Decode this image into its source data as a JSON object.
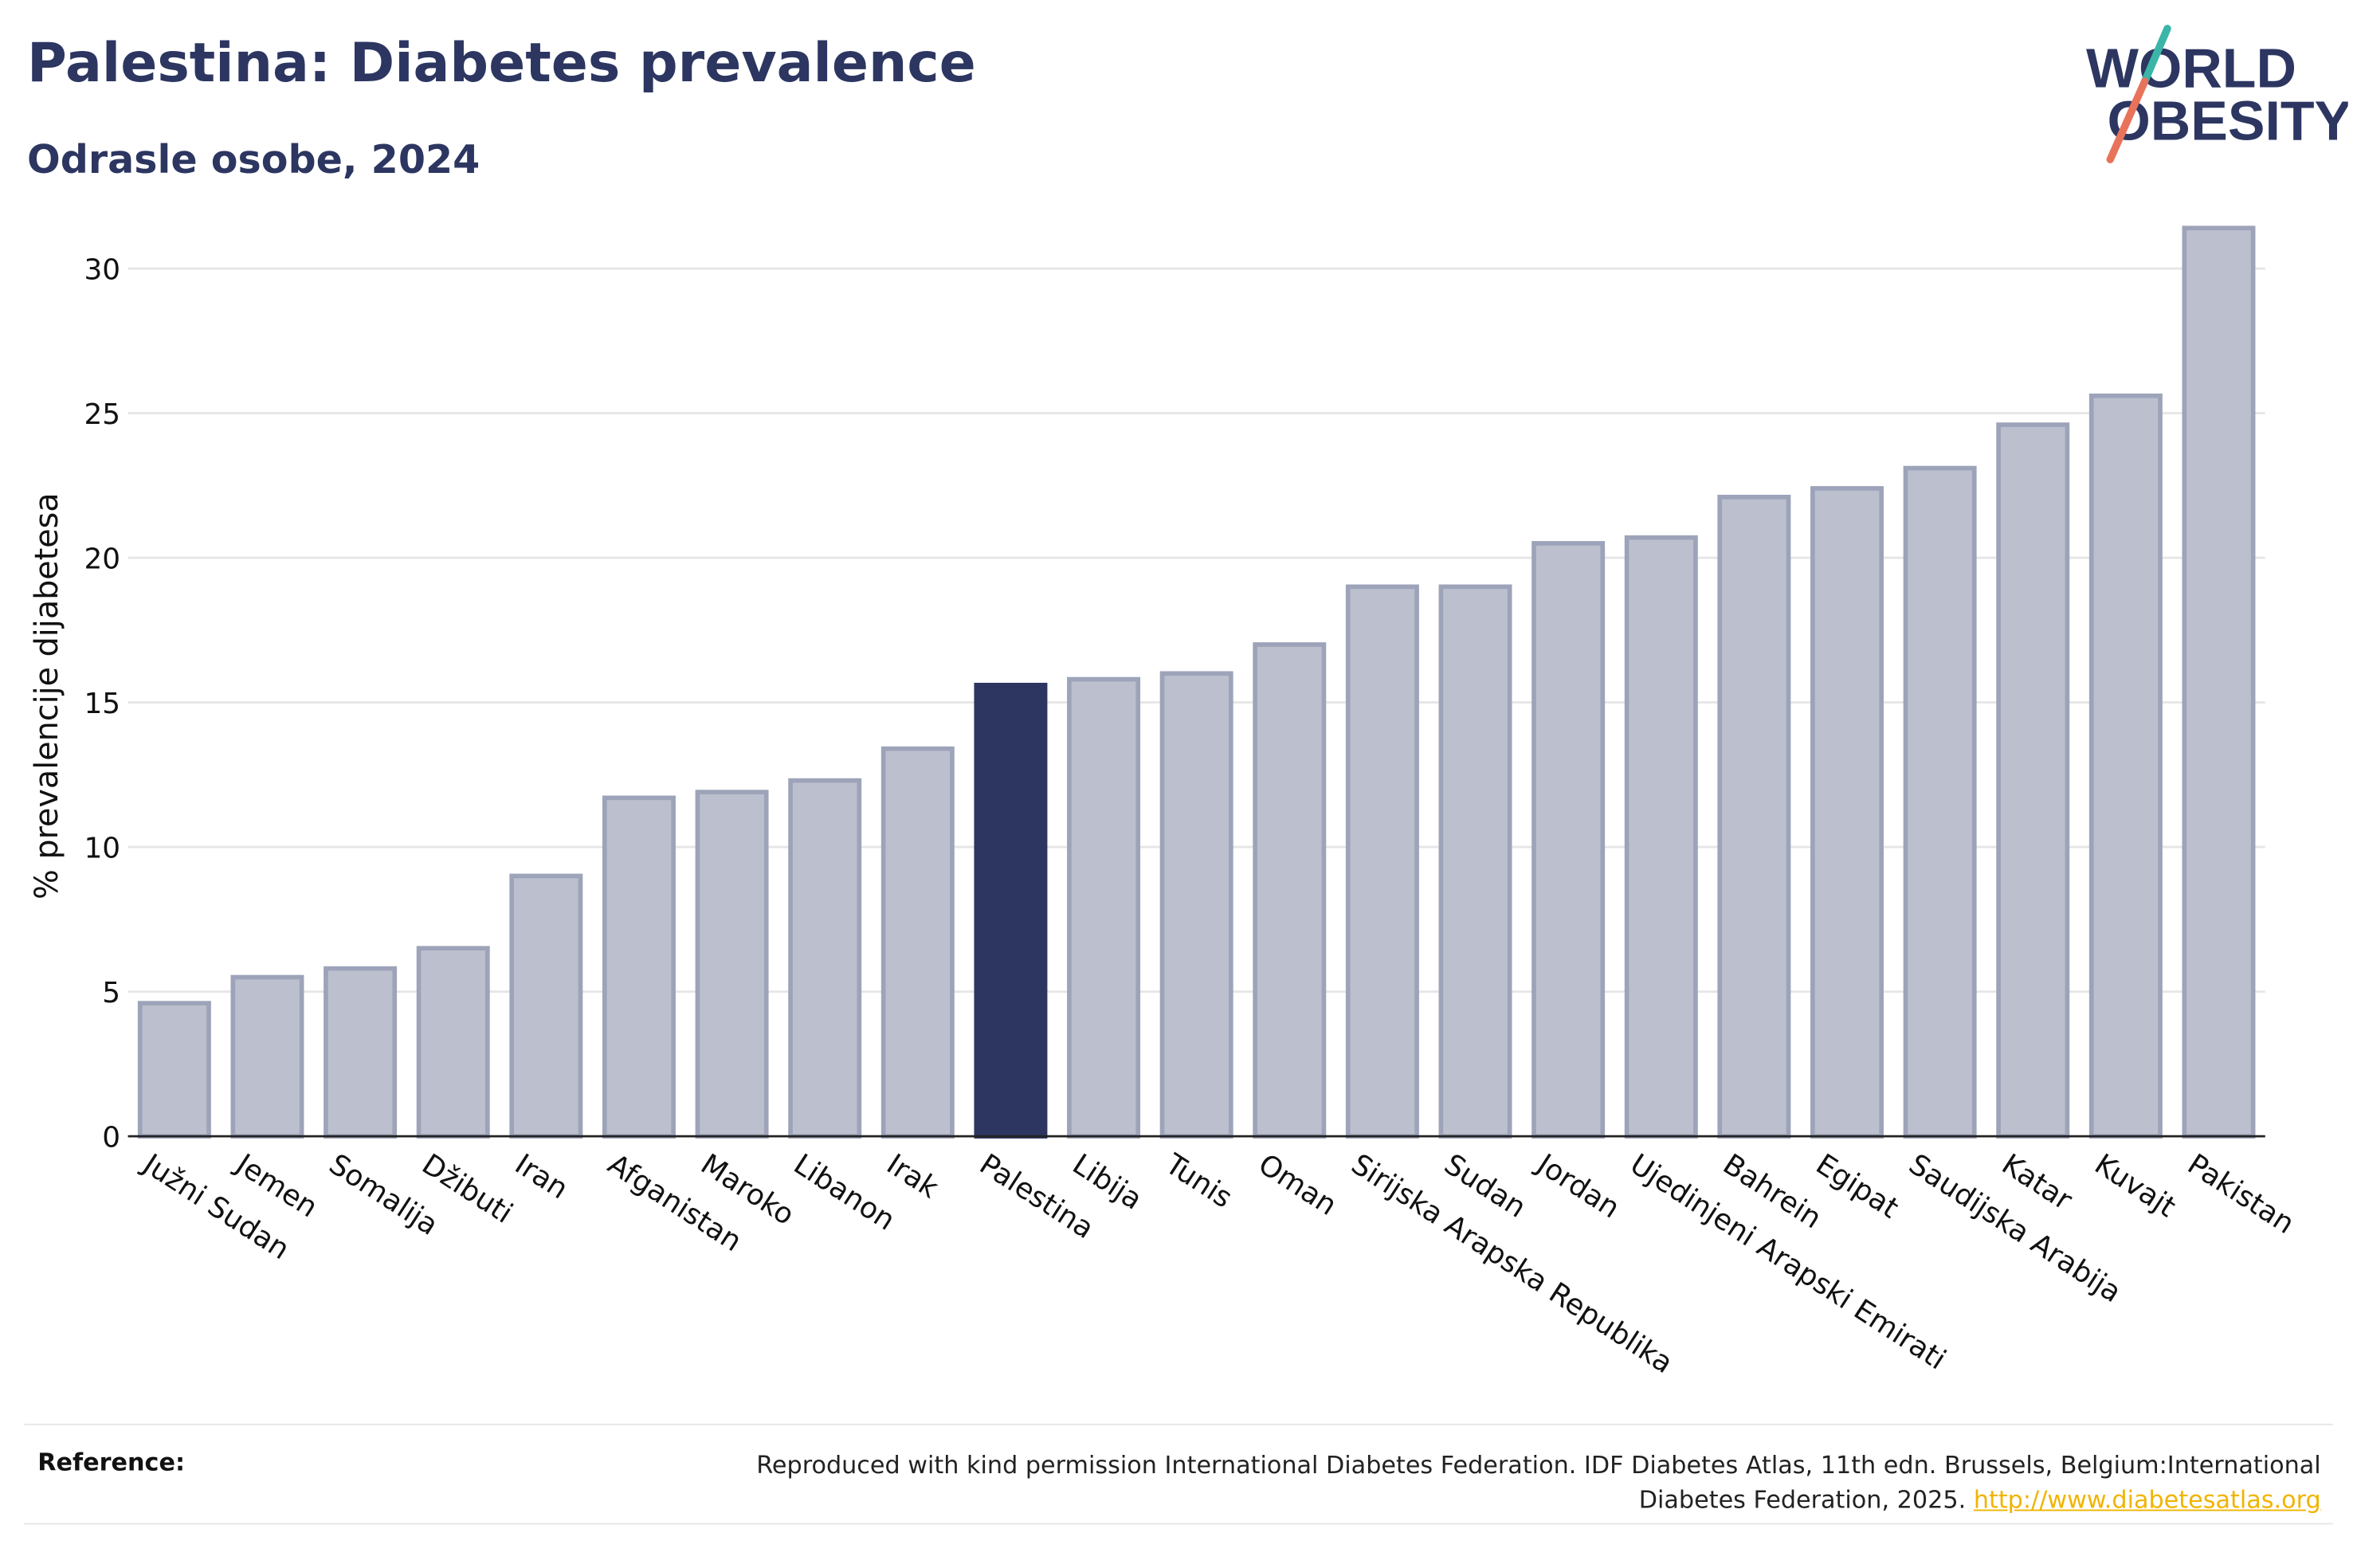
{
  "header": {
    "title": "Palestina: Diabetes prevalence",
    "subtitle": "Odrasle osobe, 2024"
  },
  "logo": {
    "line1": "WORLD",
    "line2": "OBESITY"
  },
  "colors": {
    "highlight": "#2c3661",
    "bar_fill": "#bcc0ce",
    "bar_stroke": "#9da3b9",
    "logo_teal": "#3ab5a8",
    "logo_coral": "#e8735a",
    "link": "#f0b400"
  },
  "chart_data": {
    "type": "bar",
    "ylabel": "% prevalencije dijabetesa",
    "xlabel": "",
    "ylim": [
      0,
      32
    ],
    "yticks": [
      0,
      5,
      10,
      15,
      20,
      25,
      30
    ],
    "grid": true,
    "highlight_category": "Palestina",
    "categories": [
      "Južni Sudan",
      "Jemen",
      "Somalija",
      "Džibuti",
      "Iran",
      "Afganistan",
      "Maroko",
      "Libanon",
      "Irak",
      "Palestina",
      "Libija",
      "Tunis",
      "Oman",
      "Sirijska Arapska Republika",
      "Sudan",
      "Jordan",
      "Ujedinjeni Arapski Emirati",
      "Bahrein",
      "Egipat",
      "Saudijska Arabija",
      "Katar",
      "Kuvajt",
      "Pakistan"
    ],
    "values": [
      4.6,
      5.5,
      5.8,
      6.5,
      9.0,
      11.7,
      11.9,
      12.3,
      13.4,
      15.6,
      15.8,
      16.0,
      17.0,
      19.0,
      19.0,
      20.5,
      20.7,
      22.1,
      22.4,
      23.1,
      24.6,
      25.6,
      31.4
    ]
  },
  "reference": {
    "label": "Reference:",
    "text": "Reproduced with kind permission International Diabetes Federation. IDF Diabetes Atlas, 11th edn. Brussels, Belgium:International Diabetes Federation, 2025.",
    "link": "http://www.diabetesatlas.org"
  }
}
